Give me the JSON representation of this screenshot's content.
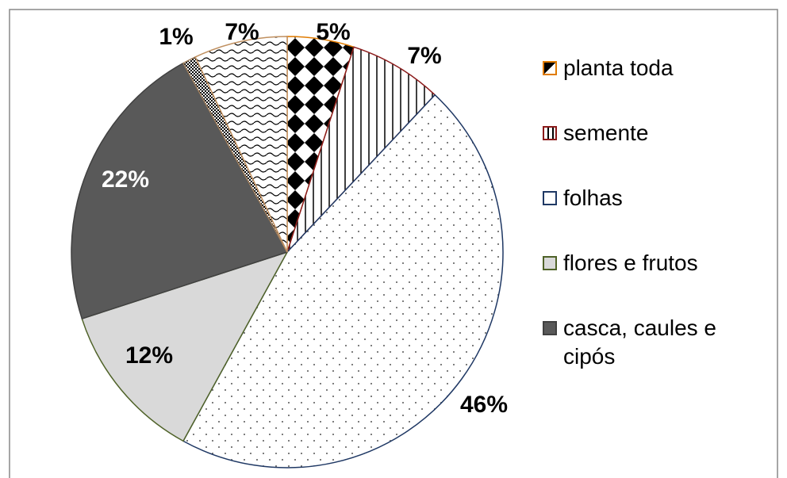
{
  "chart_data": {
    "type": "pie",
    "categories": [
      "planta toda",
      "semente",
      "folhas",
      "flores e frutos",
      "casca, caules e cipós",
      null,
      null
    ],
    "values": [
      5,
      7,
      46,
      12,
      22,
      1,
      7
    ],
    "value_labels": [
      "5%",
      "7%",
      "46%",
      "12%",
      "22%",
      "1%",
      "7%"
    ],
    "colors": [
      "#e07b00",
      "#8b1a1a",
      "#1f3864",
      "#4f6228",
      "#404040",
      "#a08060",
      "#c09060"
    ],
    "legend": "right"
  }
}
